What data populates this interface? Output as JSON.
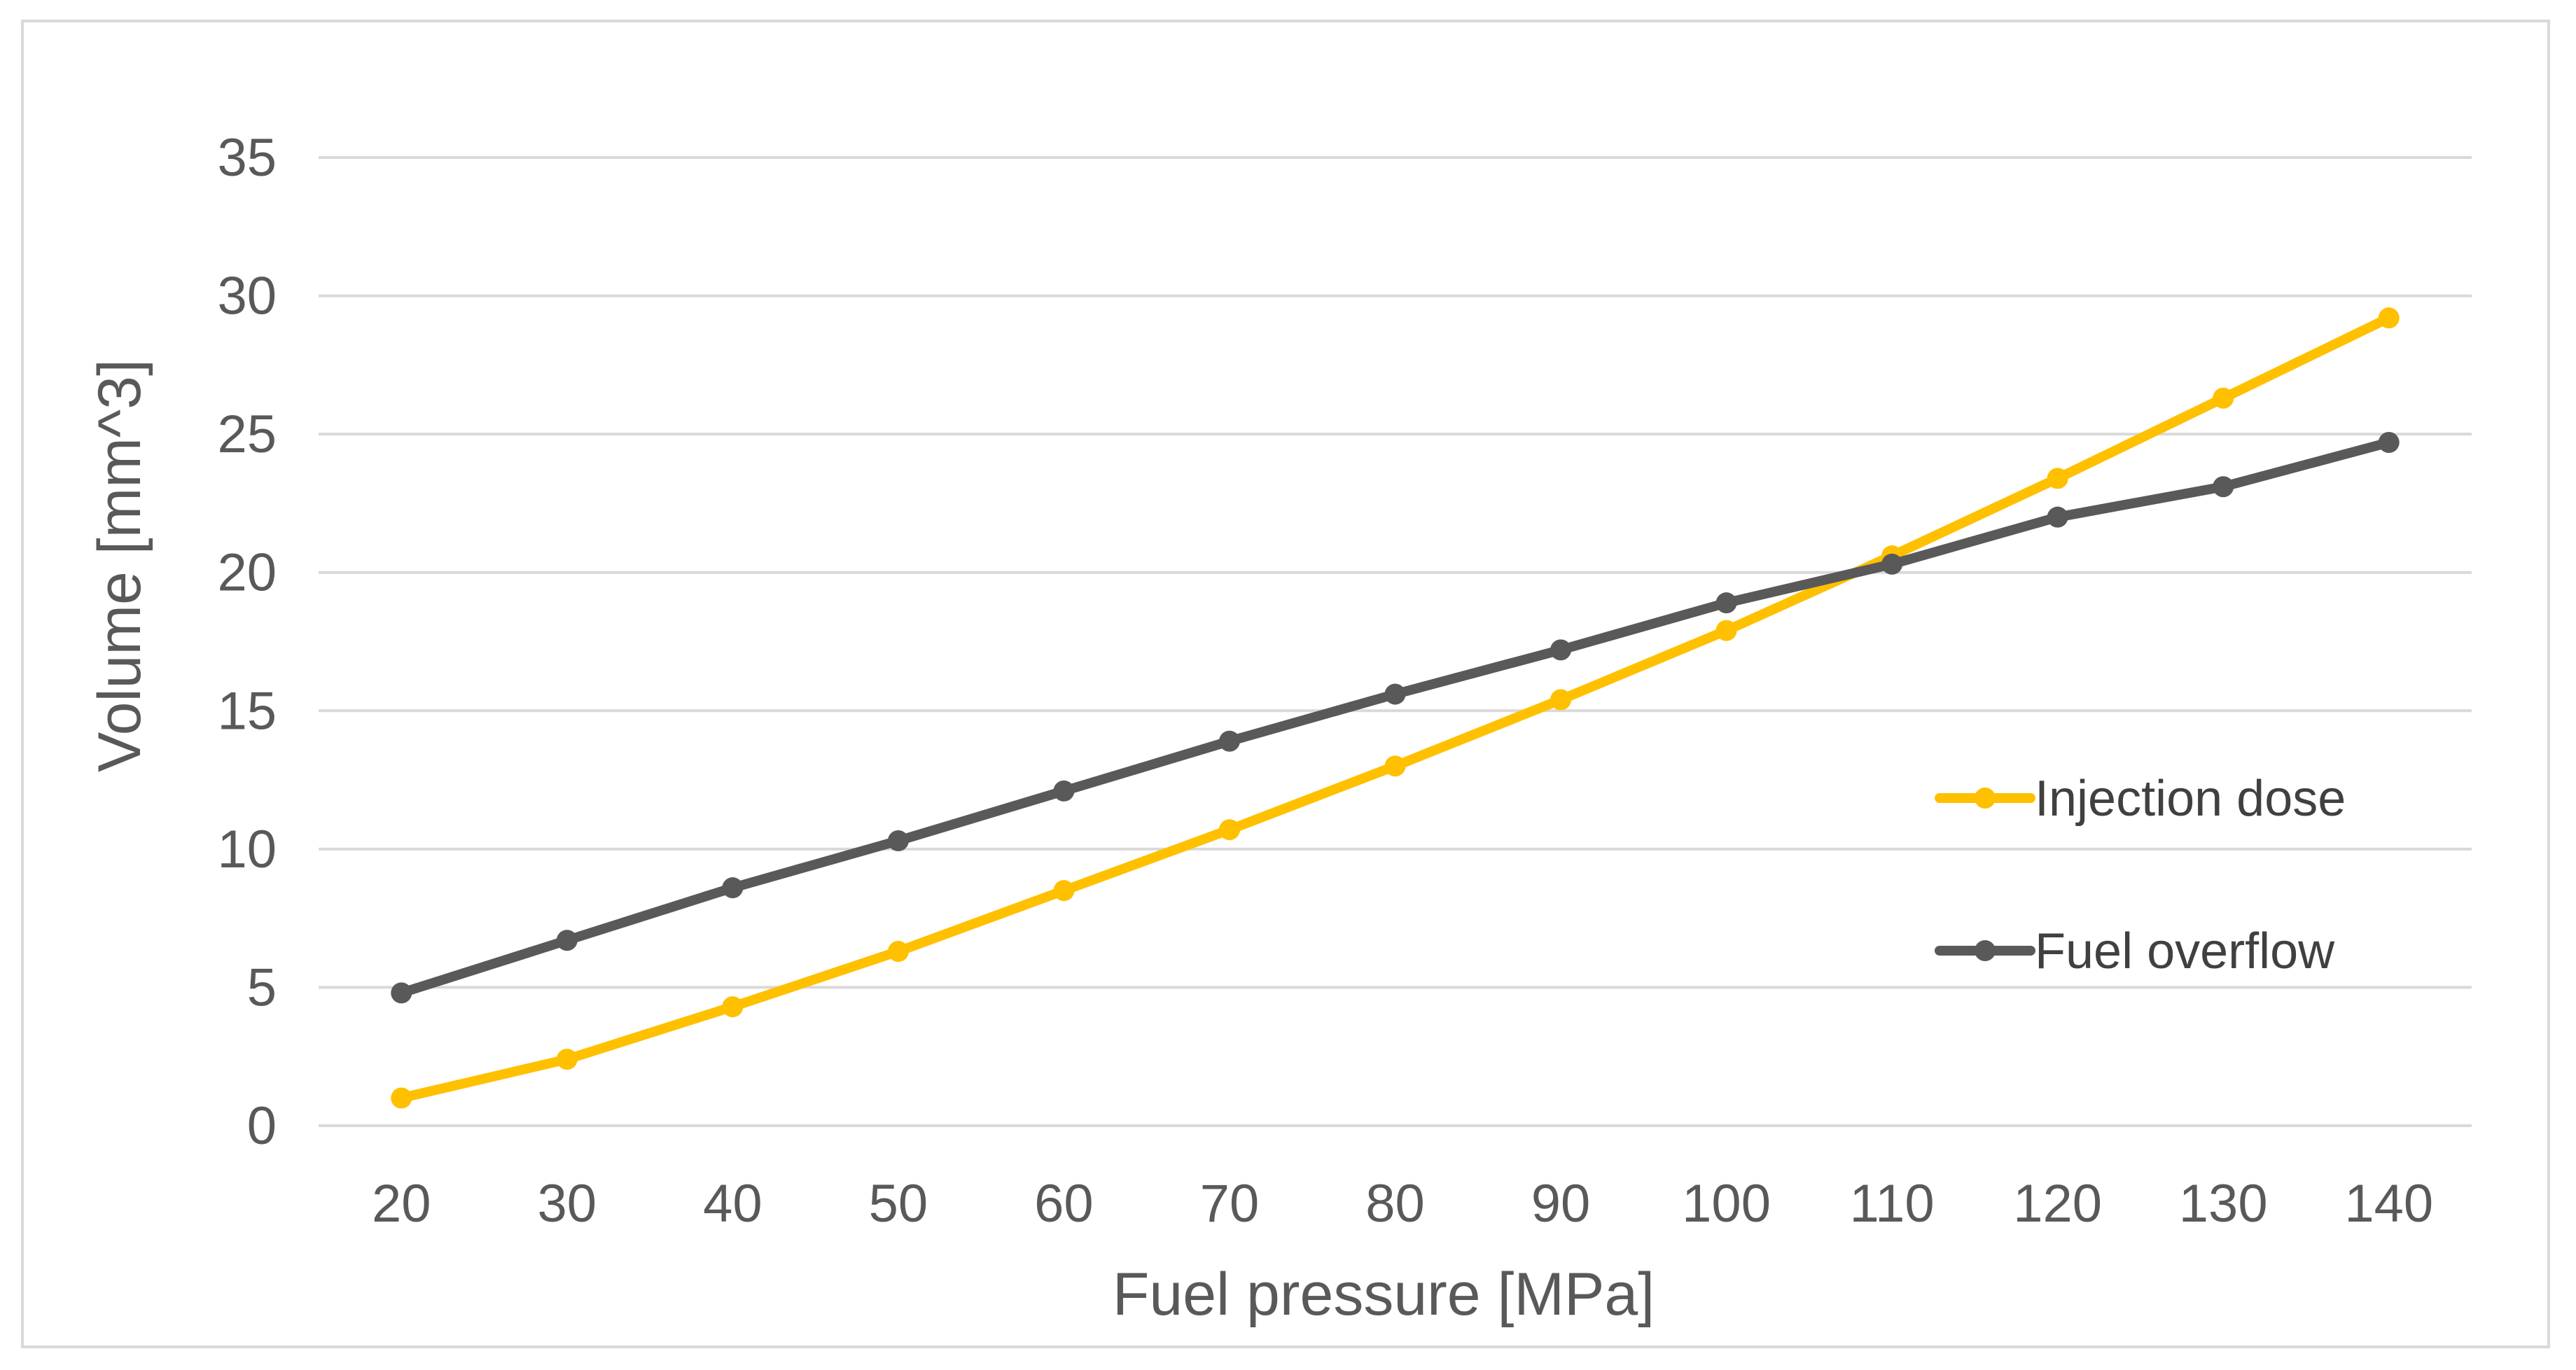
{
  "chart_data": {
    "type": "line",
    "title": "",
    "xlabel": "Fuel pressure [MPa]",
    "ylabel": "Volume [mm^3]",
    "categories": [
      "20",
      "30",
      "40",
      "50",
      "60",
      "70",
      "80",
      "90",
      "100",
      "110",
      "120",
      "130",
      "140"
    ],
    "ylim": [
      0,
      35
    ],
    "yticks": [
      "0",
      "5",
      "10",
      "15",
      "20",
      "25",
      "30",
      "35"
    ],
    "grid": true,
    "legend_position": "right",
    "series": [
      {
        "name": "Injection dose",
        "color": "#ffc000",
        "values": [
          1.0,
          2.4,
          4.3,
          6.3,
          8.5,
          10.7,
          13.0,
          15.4,
          17.9,
          20.6,
          23.4,
          26.3,
          29.2
        ]
      },
      {
        "name": "Fuel overflow",
        "color": "#595959",
        "values": [
          4.8,
          6.7,
          8.6,
          10.3,
          12.1,
          13.9,
          15.6,
          17.2,
          18.9,
          20.3,
          22.0,
          23.1,
          24.7
        ]
      }
    ]
  }
}
